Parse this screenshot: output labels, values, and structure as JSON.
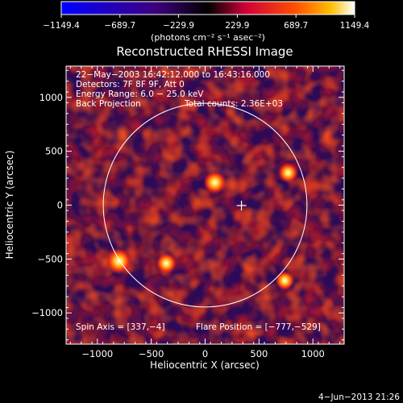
{
  "colorbar": {
    "ticks": [
      "−1149.4",
      "−689.7",
      "−229.9",
      "229.9",
      "689.7",
      "1149.4"
    ],
    "units": "(photons cm⁻² s⁻¹ asec⁻²)"
  },
  "title": "Reconstructed RHESSI Image",
  "info": {
    "time_range": "22−May−2003 16:42:12.000 to 16:43:16.000",
    "detectors": "Detectors: 7F 8F 9F, Att 0",
    "energy": "Energy Range: 6.0 − 25.0 keV",
    "method": "Back Projection",
    "counts": "Total counts: 2.36E+03",
    "spin_axis": "Spin Axis = [337,−4]",
    "flare_position": "Flare Position = [−777,−529]"
  },
  "axes": {
    "xlabel": "Heliocentric X (arcsec)",
    "ylabel": "Heliocentric Y (arcsec)",
    "xticks": [
      "−1000",
      "−500",
      "0",
      "500",
      "1000"
    ],
    "yticks": [
      "1000",
      "500",
      "0",
      "−500",
      "−1000"
    ]
  },
  "chart_data": {
    "type": "heatmap",
    "title": "Reconstructed RHESSI Image",
    "xlabel": "Heliocentric X (arcsec)",
    "ylabel": "Heliocentric Y (arcsec)",
    "xlim": [
      -1290,
      1290
    ],
    "ylim": [
      -1290,
      1290
    ],
    "value_range": [
      -1149.4,
      1149.4
    ],
    "solar_limb_radius": 945,
    "marker_position": [
      337,
      -4
    ],
    "flare_position": [
      -777,
      -529
    ],
    "hotspots": [
      {
        "x": -800,
        "y": -520,
        "value": 1149
      },
      {
        "x": 90,
        "y": 210,
        "value": 950
      },
      {
        "x": -360,
        "y": -540,
        "value": 800
      },
      {
        "x": 770,
        "y": 300,
        "value": 750
      },
      {
        "x": 740,
        "y": -700,
        "value": 700
      }
    ]
  },
  "footer": {
    "date": "4−Jun−2013 21:26"
  }
}
